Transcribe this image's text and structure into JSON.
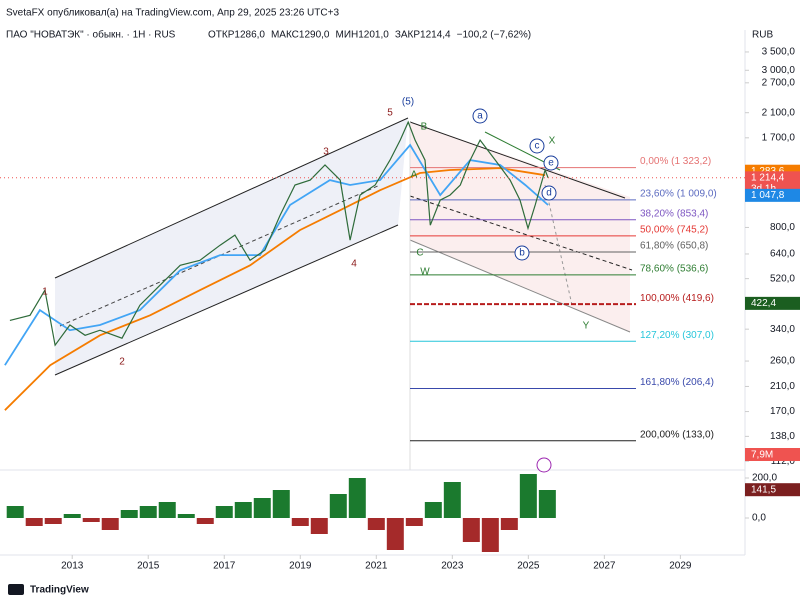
{
  "header": {
    "publisher": "SvetaFX опубликовал(а) на TradingView.com, Апр 29, 2025 23:26 UTC+3",
    "symbol": "ПАО \"НОВАТЭК\" · обыкн. · 1Н · RUS",
    "ohlc": [
      "ОТКР1286,0",
      "МАКС1290,0",
      "МИН1201,0",
      "ЗАКР1214,4"
    ],
    "change": "−100,2 (−7,62%)"
  },
  "chart_data": {
    "type": "line",
    "log_scale": true,
    "currency": "RUB",
    "xlim": [
      2011.1,
      2030.7
    ],
    "xticks": [
      2013,
      2015,
      2017,
      2019,
      2021,
      2023,
      2025,
      2027,
      2029
    ],
    "ylim": [
      104,
      4210
    ],
    "yticks": [
      {
        "value": 3500,
        "label": "3 500,0"
      },
      {
        "value": 3000,
        "label": "3 000,0"
      },
      {
        "value": 2700,
        "label": "2 700,0"
      },
      {
        "value": 2100,
        "label": "2 100,0"
      },
      {
        "value": 1700,
        "label": "1 700,0"
      },
      {
        "value": 800,
        "label": "800,0"
      },
      {
        "value": 640,
        "label": "640,0"
      },
      {
        "value": 520,
        "label": "520,0"
      },
      {
        "value": 340,
        "label": "340,0"
      },
      {
        "value": 260,
        "label": "260,0"
      },
      {
        "value": 210,
        "label": "210,0"
      },
      {
        "value": 170,
        "label": "170,0"
      },
      {
        "value": 138,
        "label": "138,0"
      },
      {
        "value": 112,
        "label": "112,0"
      }
    ],
    "series": [
      {
        "color": "#f57c00",
        "x": [
          2011.23,
          2012.42,
          2013.73,
          2015.05,
          2016.36,
          2017.68,
          2018.99,
          2020.05,
          2021.1,
          2022.15,
          2022.94,
          2024.26,
          2025.44
        ],
        "values": [
          172,
          251,
          323,
          382,
          472,
          582,
          782,
          925,
          1094,
          1265,
          1297,
          1318,
          1241
        ]
      },
      {
        "color": "#42a5f5",
        "x": [
          2011.23,
          2012.15,
          2012.94,
          2013.73,
          2014.78,
          2015.84,
          2016.89,
          2017.94,
          2018.73,
          2019.78,
          2020.31,
          2021.1,
          2021.89,
          2022.68,
          2023.47,
          2024.26,
          2024.92,
          2025.52
        ],
        "values": [
          251,
          399,
          337,
          352,
          399,
          558,
          634,
          634,
          966,
          1191,
          1143,
          1191,
          1600,
          1050,
          1409,
          1352,
          1143,
          966
        ]
      },
      {
        "color": "#2e6b3a",
        "x": [
          2011.36,
          2011.89,
          2012.28,
          2012.55,
          2012.94,
          2013.34,
          2013.73,
          2014.31,
          2014.78,
          2015.31,
          2015.84,
          2016.36,
          2016.89,
          2017.28,
          2017.68,
          2018.07,
          2018.47,
          2018.86,
          2019.26,
          2019.65,
          2020.05,
          2020.31,
          2020.57,
          2020.97,
          2021.36,
          2021.63,
          2021.84,
          2022.02,
          2022.28,
          2022.42,
          2022.68,
          2022.94,
          2023.21,
          2023.47,
          2023.73,
          2024.13,
          2024.52,
          2024.78,
          2024.99,
          2025.18,
          2025.44,
          2025.52
        ],
        "values": [
          366,
          382,
          472,
          297,
          352,
          323,
          337,
          315,
          416,
          492,
          582,
          607,
          689,
          750,
          607,
          661,
          887,
          1143,
          1191,
          1352,
          1191,
          719,
          1050,
          1143,
          1409,
          1667,
          1941,
          1667,
          1409,
          815,
          1007,
          1050,
          1143,
          1409,
          1667,
          1409,
          1191,
          1007,
          794,
          966,
          1297,
          1214.4
        ]
      }
    ],
    "fib_levels": [
      {
        "label": "0,00% (1 323,2)",
        "value": 1323.2,
        "color": "#e57373"
      },
      {
        "label": "23,60% (1 009,0)",
        "value": 1009.0,
        "color": "#5c6bc0"
      },
      {
        "label": "38,20% (853,4)",
        "value": 853.4,
        "color": "#7e57c2"
      },
      {
        "label": "50,00% (745,2)",
        "value": 745.2,
        "color": "#e53935"
      },
      {
        "label": "61,80% (650,8)",
        "value": 650.8,
        "color": "#616161"
      },
      {
        "label": "78,60% (536,6)",
        "value": 536.6,
        "color": "#2e7d32"
      },
      {
        "label": "100,00% (419,6)",
        "value": 419.6,
        "color": "#b71c1c"
      },
      {
        "label": "127,20% (307,0)",
        "value": 307.0,
        "color": "#26c6da"
      },
      {
        "label": "161,80% (206,4)",
        "value": 206.4,
        "color": "#3949ab"
      },
      {
        "label": "200,00% (133,0)",
        "value": 133.0,
        "color": "#212121"
      }
    ],
    "wave_labels": [
      "1",
      "2",
      "3",
      "4",
      "5",
      "(5)",
      "A",
      "B",
      "C",
      "W",
      "X",
      "Y",
      "a",
      "b",
      "c",
      "d",
      "e"
    ],
    "price_tags": [
      {
        "value": 1283.6,
        "label": "1 283,6",
        "color": "#f57c00"
      },
      {
        "value": 1214.4,
        "label": "1 214,4",
        "color": "#ef5350"
      },
      {
        "value": 1047.8,
        "label": "1 047,8",
        "color": "#1e88e5"
      },
      {
        "value": 422.4,
        "label": "422,4",
        "color": "#1b5e20"
      }
    ],
    "countdown": "3d 1h",
    "volume_tag": "7,9M",
    "oscillator": {
      "ylim": [
        -185,
        240
      ],
      "yticks": [
        {
          "value": 200,
          "label": "200,0"
        },
        {
          "value": 0,
          "label": "0,0"
        }
      ],
      "x": [
        2011.5,
        2012.0,
        2012.5,
        2013.0,
        2013.5,
        2014.0,
        2014.5,
        2015.0,
        2015.5,
        2016.0,
        2016.5,
        2017.0,
        2017.5,
        2018.0,
        2018.5,
        2019.0,
        2019.5,
        2020.0,
        2020.5,
        2021.0,
        2021.5,
        2022.0,
        2022.5,
        2023.0,
        2023.5,
        2024.0,
        2024.5,
        2025.0,
        2025.5
      ],
      "values": [
        60,
        -40,
        -30,
        20,
        -20,
        -60,
        40,
        60,
        80,
        20,
        -30,
        60,
        80,
        100,
        140,
        -40,
        -80,
        120,
        200,
        -60,
        -160,
        -40,
        80,
        180,
        -120,
        -170,
        -60,
        220,
        140
      ],
      "up_color": "#1b7a2e",
      "down_color": "#a52a2a",
      "tag": {
        "value": 141.5,
        "label": "141,5",
        "color": "#7b1f1f"
      }
    },
    "brand": "TradingView"
  }
}
